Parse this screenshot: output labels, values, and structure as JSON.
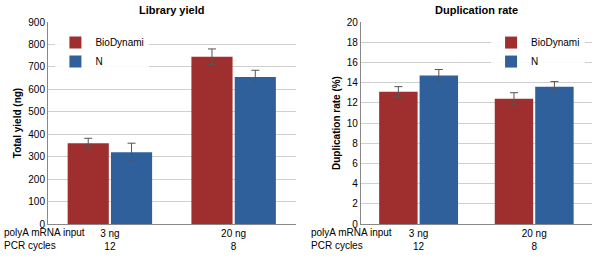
{
  "chart_data": [
    {
      "type": "bar",
      "title": "Library yield",
      "ylabel": "Total yield (ng)",
      "categories": [
        "3 ng",
        "20 ng"
      ],
      "x_rows": [
        {
          "label": "polyA mRNA input",
          "values": [
            "3 ng",
            "20 ng"
          ]
        },
        {
          "label": "PCR cycles",
          "values": [
            12,
            8
          ]
        }
      ],
      "series": [
        {
          "name": "BioDynami",
          "color": "#9e2f2e",
          "values": [
            360,
            745
          ],
          "errors": [
            22,
            35
          ]
        },
        {
          "name": "N",
          "color": "#2f609c",
          "values": [
            320,
            655
          ],
          "errors": [
            40,
            30
          ]
        }
      ],
      "ylim": [
        0,
        900
      ],
      "yticks": [
        0,
        100,
        200,
        300,
        400,
        500,
        600,
        700,
        800,
        900
      ],
      "grid": true,
      "legend": "top left"
    },
    {
      "type": "bar",
      "title": "Duplication rate",
      "ylabel": "Duplication rate (%)",
      "categories": [
        "3 ng",
        "20 ng"
      ],
      "x_rows": [
        {
          "label": "polyA mRNA input",
          "values": [
            "3 ng",
            "20 ng"
          ]
        },
        {
          "label": "PCR cycles",
          "values": [
            12,
            8
          ]
        }
      ],
      "series": [
        {
          "name": "BioDynami",
          "color": "#9e2f2e",
          "values": [
            13.1,
            12.4
          ],
          "errors": [
            0.5,
            0.6
          ]
        },
        {
          "name": "N",
          "color": "#2f609c",
          "values": [
            14.7,
            13.6
          ],
          "errors": [
            0.6,
            0.5
          ]
        }
      ],
      "ylim": [
        0,
        20
      ],
      "yticks": [
        0,
        2,
        4,
        6,
        8,
        10,
        12,
        14,
        16,
        18,
        20
      ],
      "grid": true,
      "legend": "top right"
    }
  ]
}
